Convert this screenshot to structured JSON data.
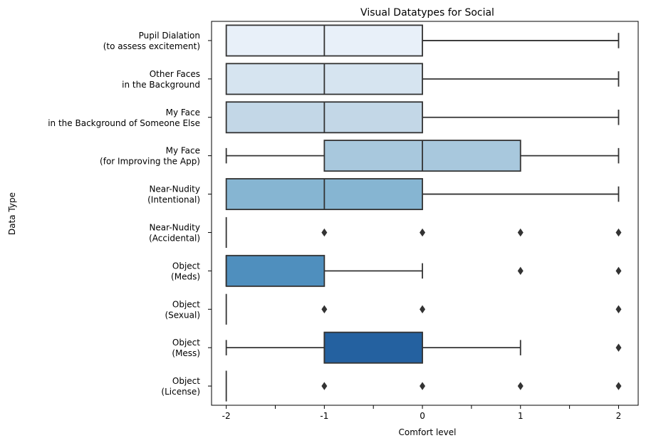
{
  "chart_data": {
    "type": "box",
    "orientation": "horizontal",
    "title": "Visual Datatypes for Social",
    "xlabel": "Comfort level",
    "ylabel": "Data Type",
    "xlim": [
      -2.15,
      2.2
    ],
    "xticks": [
      {
        "value": -2,
        "label": "-2"
      },
      {
        "value": -1.5,
        "label": ""
      },
      {
        "value": -1,
        "label": "-1"
      },
      {
        "value": -0.5,
        "label": ""
      },
      {
        "value": 0,
        "label": "0"
      },
      {
        "value": 0.5,
        "label": ""
      },
      {
        "value": 1,
        "label": "1"
      },
      {
        "value": 1.5,
        "label": ""
      },
      {
        "value": 2,
        "label": "2"
      }
    ],
    "grid": false,
    "categories": [
      {
        "label_lines": [
          "Pupil Dialation",
          "(to assess excitement)"
        ],
        "whislo": -2,
        "q1": -2,
        "med": -1,
        "q3": 0,
        "whishi": 2,
        "fliers": [],
        "color": "#e8f0f9"
      },
      {
        "label_lines": [
          "Other Faces",
          "in the Background"
        ],
        "whislo": -2,
        "q1": -2,
        "med": -1,
        "q3": 0,
        "whishi": 2,
        "fliers": [],
        "color": "#d6e4f0"
      },
      {
        "label_lines": [
          "My Face",
          "in the Background of Someone Else"
        ],
        "whislo": -2,
        "q1": -2,
        "med": -1,
        "q3": 0,
        "whishi": 2,
        "fliers": [],
        "color": "#c3d7e7"
      },
      {
        "label_lines": [
          "My Face",
          "(for Improving the App)"
        ],
        "whislo": -2,
        "q1": -1,
        "med": 0,
        "q3": 1,
        "whishi": 2,
        "fliers": [],
        "color": "#a8c8dd"
      },
      {
        "label_lines": [
          "Near-Nudity",
          "(Intentional)"
        ],
        "whislo": -2,
        "q1": -2,
        "med": -1,
        "q3": 0,
        "whishi": 2,
        "fliers": [],
        "color": "#86b5d2"
      },
      {
        "label_lines": [
          "Near-Nudity",
          "(Accidental)"
        ],
        "whislo": -2,
        "q1": -2,
        "med": -2,
        "q3": -2,
        "whishi": -2,
        "fliers": [
          -1,
          0,
          1,
          2
        ],
        "color": "#6aa3cc"
      },
      {
        "label_lines": [
          "Object",
          "(Meds)"
        ],
        "whislo": -2,
        "q1": -2,
        "med": -2,
        "q3": -1,
        "whishi": 0,
        "fliers": [
          1,
          2
        ],
        "color": "#4f8fbe"
      },
      {
        "label_lines": [
          "Object",
          "(Sexual)"
        ],
        "whislo": -2,
        "q1": -2,
        "med": -2,
        "q3": -2,
        "whishi": -2,
        "fliers": [
          -1,
          0,
          2
        ],
        "color": "#3a78b0"
      },
      {
        "label_lines": [
          "Object",
          "(Mess)"
        ],
        "whislo": -2,
        "q1": -1,
        "med": -1,
        "q3": 0,
        "whishi": 1,
        "fliers": [
          2
        ],
        "color": "#2461a0"
      },
      {
        "label_lines": [
          "Object",
          "(License)"
        ],
        "whislo": -2,
        "q1": -2,
        "med": -2,
        "q3": -2,
        "whishi": -2,
        "fliers": [
          -1,
          0,
          1,
          2
        ],
        "color": "#174f8e"
      }
    ],
    "colors": {
      "line": "#333333",
      "axis": "#000000"
    }
  }
}
